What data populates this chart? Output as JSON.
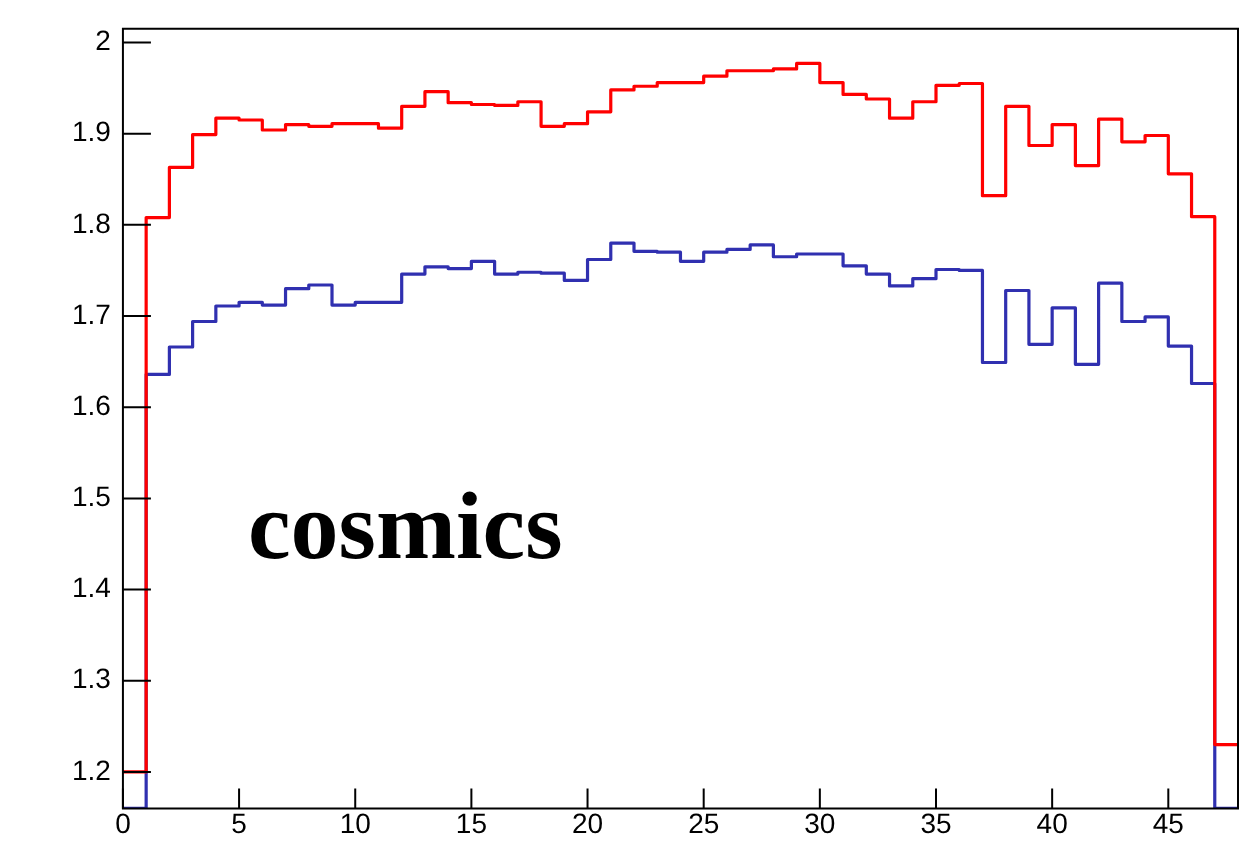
{
  "chart_data": {
    "type": "histogram",
    "bins": [
      0,
      1,
      2,
      3,
      4,
      5,
      6,
      7,
      8,
      9,
      10,
      11,
      12,
      13,
      14,
      15,
      16,
      17,
      18,
      19,
      20,
      21,
      22,
      23,
      24,
      25,
      26,
      27,
      28,
      29,
      30,
      31,
      32,
      33,
      34,
      35,
      36,
      37,
      38,
      39,
      40,
      41,
      42,
      43,
      44,
      45,
      46,
      47,
      48
    ],
    "series": [
      {
        "color": "#ff0000",
        "values": [
          1.2,
          1.808,
          1.863,
          1.899,
          1.917,
          1.915,
          1.904,
          1.91,
          1.908,
          1.911,
          1.911,
          1.906,
          1.93,
          1.946,
          1.934,
          1.932,
          1.931,
          1.935,
          1.908,
          1.911,
          1.924,
          1.948,
          1.952,
          1.956,
          1.956,
          1.963,
          1.969,
          1.969,
          1.971,
          1.977,
          1.956,
          1.943,
          1.938,
          1.917,
          1.935,
          1.953,
          1.955,
          1.832,
          1.93,
          1.887,
          1.91,
          1.865,
          1.916,
          1.891,
          1.898,
          1.856,
          1.809,
          1.23
        ]
      },
      {
        "color": "#3030b0",
        "values": [
          null,
          1.636,
          1.666,
          1.694,
          1.711,
          1.715,
          1.712,
          1.73,
          1.734,
          1.712,
          1.715,
          1.715,
          1.746,
          1.754,
          1.752,
          1.76,
          1.746,
          1.748,
          1.747,
          1.739,
          1.762,
          1.78,
          1.771,
          1.77,
          1.76,
          1.77,
          1.773,
          1.778,
          1.765,
          1.768,
          1.768,
          1.755,
          1.746,
          1.733,
          1.741,
          1.751,
          1.75,
          1.649,
          1.728,
          1.669,
          1.709,
          1.647,
          1.736,
          1.694,
          1.699,
          1.667,
          1.626,
          null
        ]
      }
    ],
    "xlim": [
      0,
      48
    ],
    "xticks": [
      0,
      5,
      10,
      15,
      20,
      25,
      30,
      35,
      40,
      45
    ],
    "ylim": [
      1.16,
      2.015
    ],
    "yticks": [
      1.2,
      1.3,
      1.4,
      1.5,
      1.6,
      1.7,
      1.8,
      1.9,
      2
    ],
    "annotations": [
      "cosmics"
    ]
  }
}
